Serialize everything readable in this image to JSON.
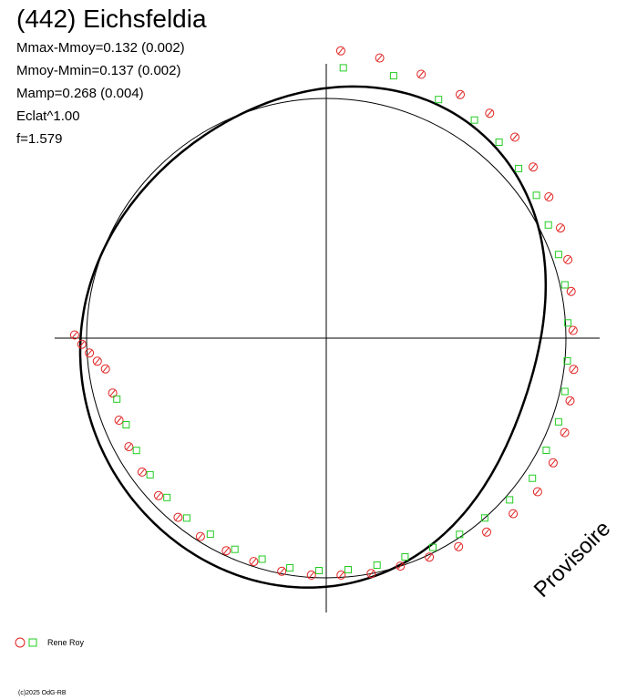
{
  "title": "(442) Eichsfeldia",
  "stats": [
    "Mmax-Mmoy=0.132 (0.002)",
    "Mmoy-Mmin=0.137 (0.002)",
    "Mamp=0.268 (0.004)",
    "Eclat^1.00",
    "f=1.579"
  ],
  "watermark": "Provisoire",
  "copyright": "(c)2025 OdG-RB",
  "colors": {
    "rene_roy_circle": "#e02020",
    "rene_roy_square": "#22cc22",
    "curve": "#000000",
    "axes": "#000000"
  },
  "legend": [
    {
      "label": "Rene Roy",
      "markers": [
        "circle",
        "square"
      ]
    }
  ],
  "chart_data": {
    "type": "polar_lightcurve",
    "axes": "cross-hair through centre, no tick labels",
    "reference_circle_radius": 1.0,
    "fit_curve": {
      "harmonics": [
        {
          "k": 1,
          "a": 0.015,
          "b": -0.045
        },
        {
          "k": 2,
          "a": 0.04,
          "b": 0.055
        },
        {
          "k": 3,
          "a": -0.012,
          "b": 0.02
        }
      ]
    },
    "series": [
      {
        "name": "Rene Roy",
        "marker": "circle",
        "points": [
          {
            "phase": 0.008,
            "r": 1.2
          },
          {
            "phase": 0.03,
            "r": 1.19
          },
          {
            "phase": 0.055,
            "r": 1.17
          },
          {
            "phase": 0.08,
            "r": 1.16
          },
          {
            "phase": 0.1,
            "r": 1.16
          },
          {
            "phase": 0.12,
            "r": 1.15
          },
          {
            "phase": 0.14,
            "r": 1.12
          },
          {
            "phase": 0.16,
            "r": 1.1
          },
          {
            "phase": 0.18,
            "r": 1.08
          },
          {
            "phase": 0.2,
            "r": 1.06
          },
          {
            "phase": 0.22,
            "r": 1.04
          },
          {
            "phase": 0.245,
            "r": 1.03
          },
          {
            "phase": 0.27,
            "r": 1.04
          },
          {
            "phase": 0.29,
            "r": 1.05
          },
          {
            "phase": 0.31,
            "r": 1.07
          },
          {
            "phase": 0.33,
            "r": 1.08
          },
          {
            "phase": 0.35,
            "r": 1.09
          },
          {
            "phase": 0.37,
            "r": 1.07
          },
          {
            "phase": 0.39,
            "r": 1.05
          },
          {
            "phase": 0.41,
            "r": 1.03
          },
          {
            "phase": 0.43,
            "r": 1.01
          },
          {
            "phase": 0.45,
            "r": 1.0
          },
          {
            "phase": 0.47,
            "r": 1.0
          },
          {
            "phase": 0.49,
            "r": 0.99
          },
          {
            "phase": 0.51,
            "r": 0.99
          },
          {
            "phase": 0.53,
            "r": 0.99
          },
          {
            "phase": 0.55,
            "r": 0.98
          },
          {
            "phase": 0.57,
            "r": 0.98
          },
          {
            "phase": 0.59,
            "r": 0.98
          },
          {
            "phase": 0.61,
            "r": 0.97
          },
          {
            "phase": 0.63,
            "r": 0.96
          },
          {
            "phase": 0.65,
            "r": 0.95
          },
          {
            "phase": 0.67,
            "r": 0.94
          },
          {
            "phase": 0.69,
            "r": 0.93
          },
          {
            "phase": 0.71,
            "r": 0.92
          },
          {
            "phase": 0.728,
            "r": 0.93
          },
          {
            "phase": 0.734,
            "r": 0.96
          },
          {
            "phase": 0.74,
            "r": 0.99
          },
          {
            "phase": 0.746,
            "r": 1.02
          },
          {
            "phase": 0.752,
            "r": 1.05
          }
        ]
      },
      {
        "name": "Rene Roy",
        "marker": "square",
        "points": [
          {
            "phase": 0.01,
            "r": 1.13
          },
          {
            "phase": 0.04,
            "r": 1.13
          },
          {
            "phase": 0.07,
            "r": 1.1
          },
          {
            "phase": 0.095,
            "r": 1.1
          },
          {
            "phase": 0.115,
            "r": 1.09
          },
          {
            "phase": 0.135,
            "r": 1.07
          },
          {
            "phase": 0.155,
            "r": 1.06
          },
          {
            "phase": 0.175,
            "r": 1.04
          },
          {
            "phase": 0.195,
            "r": 1.03
          },
          {
            "phase": 0.215,
            "r": 1.02
          },
          {
            "phase": 0.24,
            "r": 1.01
          },
          {
            "phase": 0.265,
            "r": 1.01
          },
          {
            "phase": 0.285,
            "r": 1.02
          },
          {
            "phase": 0.305,
            "r": 1.03
          },
          {
            "phase": 0.325,
            "r": 1.03
          },
          {
            "phase": 0.345,
            "r": 1.04
          },
          {
            "phase": 0.365,
            "r": 1.02
          },
          {
            "phase": 0.385,
            "r": 1.0
          },
          {
            "phase": 0.405,
            "r": 0.99
          },
          {
            "phase": 0.425,
            "r": 0.98
          },
          {
            "phase": 0.445,
            "r": 0.97
          },
          {
            "phase": 0.465,
            "r": 0.97
          },
          {
            "phase": 0.485,
            "r": 0.97
          },
          {
            "phase": 0.505,
            "r": 0.97
          },
          {
            "phase": 0.525,
            "r": 0.97
          },
          {
            "phase": 0.545,
            "r": 0.96
          },
          {
            "phase": 0.565,
            "r": 0.96
          },
          {
            "phase": 0.585,
            "r": 0.95
          },
          {
            "phase": 0.605,
            "r": 0.95
          },
          {
            "phase": 0.625,
            "r": 0.94
          },
          {
            "phase": 0.645,
            "r": 0.93
          },
          {
            "phase": 0.665,
            "r": 0.92
          },
          {
            "phase": 0.685,
            "r": 0.91
          },
          {
            "phase": 0.705,
            "r": 0.91
          }
        ]
      }
    ]
  }
}
